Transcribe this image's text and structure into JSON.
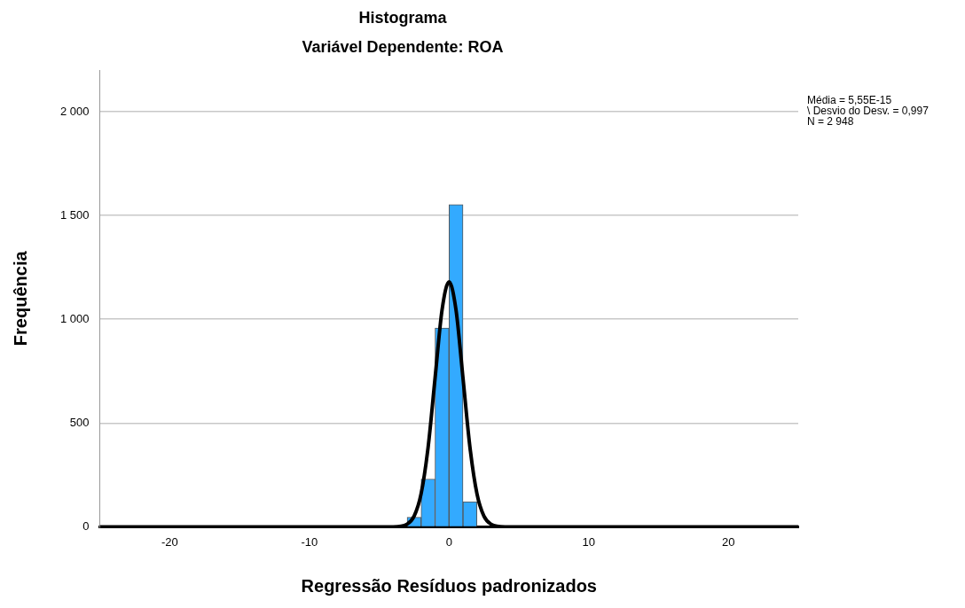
{
  "chart_data": {
    "type": "histogram",
    "title": "Histograma",
    "subtitle": "Variável Dependente: ROA",
    "xlabel": "Regressão Resíduos padronizados",
    "ylabel": "Frequência",
    "bins": [
      -3,
      -2,
      -1,
      0,
      1,
      2
    ],
    "values": [
      46,
      230,
      958,
      1552,
      121
    ],
    "color": "#33aaff",
    "series": [
      {
        "type": "line",
        "color": "#000000",
        "x": [
          -25,
          -4,
          -3,
          -2.5,
          -2,
          -1.5,
          -1,
          -0.5,
          0,
          0.5,
          1,
          1.5,
          2,
          2.5,
          3,
          4,
          25
        ],
        "values": [
          0,
          0,
          13,
          51,
          159,
          382,
          716,
          1045,
          1180,
          1045,
          716,
          382,
          159,
          51,
          13,
          0,
          0
        ]
      }
    ],
    "xlim": [
      -25,
      25
    ],
    "xticks": [
      -20,
      -10,
      0,
      10,
      20
    ],
    "ylim": [
      0,
      2200
    ],
    "yticks": [
      0,
      {
        "value": 500,
        "label": "500"
      },
      {
        "value": 1000,
        "label": "1 000"
      },
      {
        "value": 1500,
        "label": "1 500"
      },
      {
        "value": 2000,
        "label": "2 000"
      }
    ],
    "grid": "y",
    "legend": false,
    "annotations": [
      "Média = 5,55E-15",
      "\\ Desvio do Desv. = 0,997",
      "N = 2 948"
    ]
  }
}
